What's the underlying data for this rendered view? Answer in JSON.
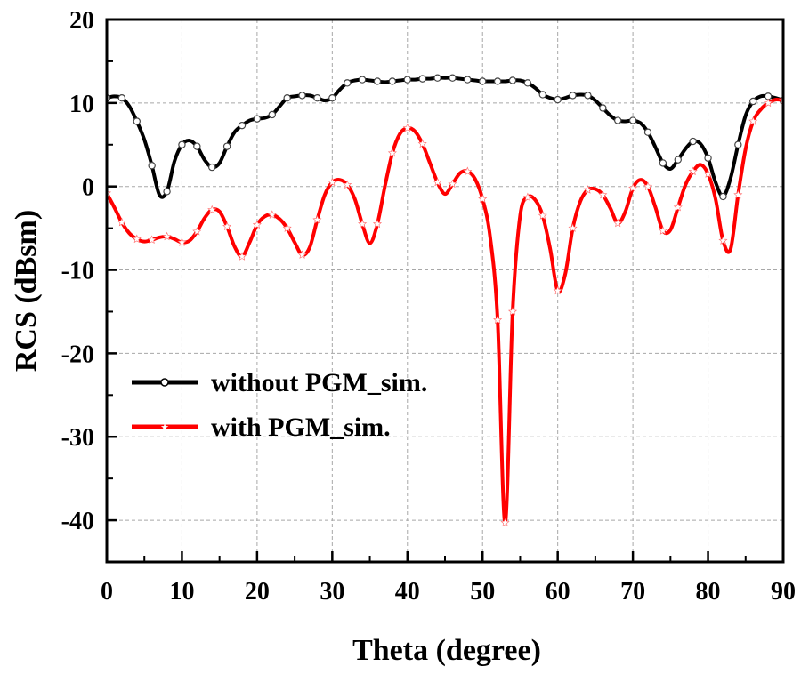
{
  "chart_data": {
    "type": "line",
    "title": "",
    "xlabel": "Theta (degree)",
    "ylabel": "RCS (dBsm)",
    "xlim": [
      0,
      90
    ],
    "ylim": [
      -45,
      20
    ],
    "xticks": [
      0,
      10,
      20,
      30,
      40,
      50,
      60,
      70,
      80,
      90
    ],
    "yticks": [
      20,
      10,
      0,
      -10,
      -20,
      -30,
      -40
    ],
    "xtick_labels": [
      "0",
      "10",
      "20",
      "30",
      "40",
      "50",
      "60",
      "70",
      "80",
      "90"
    ],
    "ytick_labels": [
      "20",
      "10",
      "0",
      "-10",
      "-20",
      "-30",
      "-40"
    ],
    "grid": true,
    "legend_position": "center-left",
    "series": [
      {
        "name": "without PGM_sim.",
        "color": "#000000",
        "marker": "circle",
        "x": [
          0,
          1,
          2,
          3,
          4,
          5,
          6,
          7,
          8,
          9,
          10,
          11,
          12,
          13,
          14,
          15,
          16,
          17,
          18,
          19,
          20,
          21,
          22,
          23,
          24,
          25,
          26,
          27,
          28,
          29,
          30,
          31,
          32,
          33,
          34,
          35,
          36,
          37,
          38,
          39,
          40,
          41,
          42,
          43,
          44,
          45,
          46,
          47,
          48,
          49,
          50,
          51,
          52,
          53,
          54,
          55,
          56,
          57,
          58,
          59,
          60,
          61,
          62,
          63,
          64,
          65,
          66,
          67,
          68,
          69,
          70,
          71,
          72,
          73,
          74,
          75,
          76,
          77,
          78,
          79,
          80,
          81,
          82,
          83,
          84,
          85,
          86,
          87,
          88,
          89,
          90
        ],
        "values": [
          10.6,
          10.8,
          10.6,
          9.6,
          7.8,
          5.6,
          2.5,
          -1.0,
          -0.6,
          3.0,
          5.0,
          5.5,
          4.8,
          3.2,
          2.3,
          2.8,
          4.8,
          6.5,
          7.3,
          7.9,
          8.1,
          8.2,
          8.6,
          9.6,
          10.6,
          10.8,
          10.9,
          10.9,
          10.6,
          10.3,
          10.6,
          11.6,
          12.4,
          12.7,
          12.8,
          12.7,
          12.6,
          12.5,
          12.6,
          12.7,
          12.8,
          12.8,
          12.9,
          12.9,
          13.0,
          13.0,
          13.0,
          12.9,
          12.8,
          12.7,
          12.6,
          12.6,
          12.6,
          12.6,
          12.7,
          12.7,
          12.4,
          11.8,
          11.0,
          10.6,
          10.4,
          10.6,
          10.9,
          11.0,
          10.9,
          10.3,
          9.4,
          8.5,
          7.9,
          7.8,
          7.9,
          7.6,
          6.5,
          4.7,
          2.8,
          2.1,
          3.2,
          4.5,
          5.4,
          5.1,
          3.4,
          0.5,
          -1.2,
          1.0,
          5.0,
          8.5,
          10.2,
          10.8,
          10.8,
          10.6,
          10.3
        ]
      },
      {
        "name": "with PGM_sim.",
        "color": "#ff0000",
        "marker": "star",
        "x": [
          0,
          1,
          2,
          3,
          4,
          5,
          6,
          7,
          8,
          9,
          10,
          11,
          12,
          13,
          14,
          15,
          16,
          17,
          18,
          19,
          20,
          21,
          22,
          23,
          24,
          25,
          26,
          27,
          28,
          29,
          30,
          31,
          32,
          33,
          34,
          35,
          36,
          37,
          38,
          39,
          40,
          41,
          42,
          43,
          44,
          45,
          46,
          47,
          48,
          49,
          50,
          51,
          52,
          53,
          54,
          55,
          56,
          57,
          58,
          59,
          60,
          61,
          62,
          63,
          64,
          65,
          66,
          67,
          68,
          69,
          70,
          71,
          72,
          73,
          74,
          75,
          76,
          77,
          78,
          79,
          80,
          81,
          82,
          83,
          84,
          85,
          86,
          87,
          88,
          89,
          90
        ],
        "values": [
          -0.8,
          -2.5,
          -4.3,
          -5.6,
          -6.3,
          -6.6,
          -6.4,
          -6.1,
          -6.0,
          -6.3,
          -6.7,
          -6.5,
          -5.4,
          -3.8,
          -2.8,
          -3.0,
          -4.8,
          -7.2,
          -8.4,
          -6.7,
          -4.6,
          -3.6,
          -3.4,
          -3.9,
          -5.0,
          -6.7,
          -8.2,
          -7.3,
          -4.0,
          -1.0,
          0.5,
          0.8,
          0.2,
          -1.5,
          -4.5,
          -6.8,
          -4.5,
          0.0,
          4.0,
          6.3,
          7.0,
          6.6,
          5.1,
          2.8,
          0.5,
          -0.9,
          0.3,
          1.6,
          1.8,
          0.9,
          -1.5,
          -6.0,
          -16.0,
          -40.3,
          -15.0,
          -3.5,
          -1.3,
          -1.6,
          -3.5,
          -7.5,
          -12.5,
          -10.5,
          -5.0,
          -1.8,
          -0.4,
          -0.3,
          -1.0,
          -2.6,
          -4.4,
          -3.0,
          -0.2,
          0.8,
          0.0,
          -2.5,
          -5.3,
          -5.2,
          -2.5,
          0.2,
          1.8,
          2.6,
          1.5,
          -1.5,
          -6.5,
          -7.5,
          -1.0,
          4.5,
          7.8,
          9.2,
          10.0,
          10.4,
          10.3
        ]
      }
    ]
  }
}
